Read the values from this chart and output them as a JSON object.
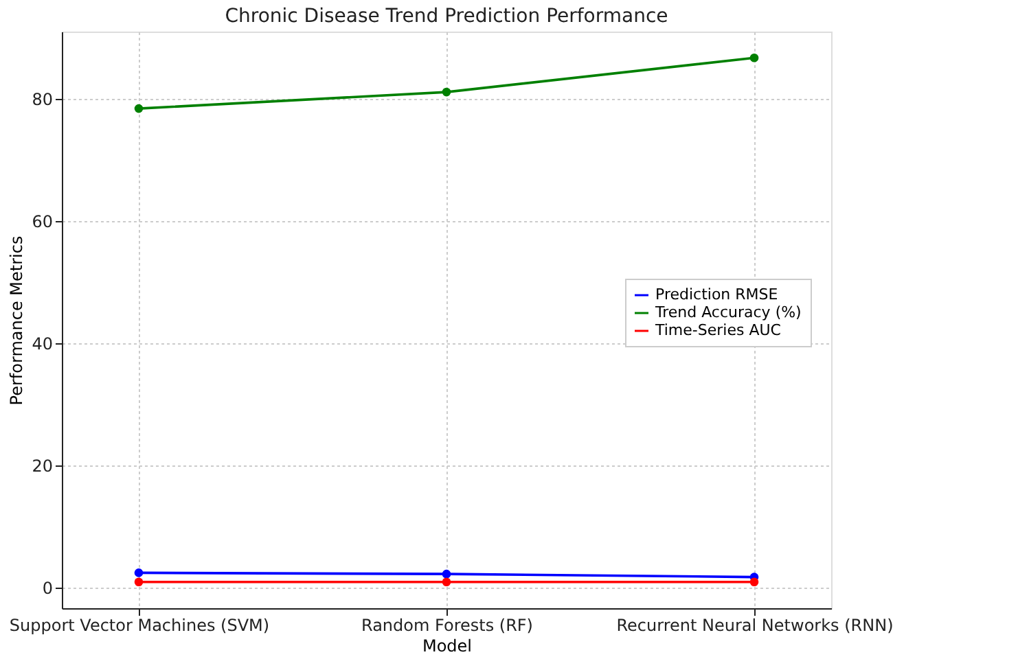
{
  "chart_data": {
    "type": "line",
    "title": "Chronic Disease Trend Prediction Performance",
    "xlabel": "Model",
    "ylabel": "Performance Metrics",
    "categories": [
      "Support Vector Machines (SVM)",
      "Random Forests (RF)",
      "Recurrent Neural Networks (RNN)"
    ],
    "series": [
      {
        "name": "Prediction RMSE",
        "color": "#0000ff",
        "values": [
          2.4,
          2.2,
          1.7
        ]
      },
      {
        "name": "Trend Accuracy (%)",
        "color": "#008000",
        "values": [
          78.4,
          81.1,
          86.7
        ]
      },
      {
        "name": "Time-Series AUC",
        "color": "#ff0000",
        "values": [
          0.9,
          0.9,
          0.9
        ]
      }
    ],
    "ylim": [
      -3.4,
      91
    ],
    "yticks": [
      0,
      20,
      40,
      60,
      80
    ],
    "grid": true,
    "legend": "right",
    "marker": "circle",
    "line_style": "solid"
  }
}
